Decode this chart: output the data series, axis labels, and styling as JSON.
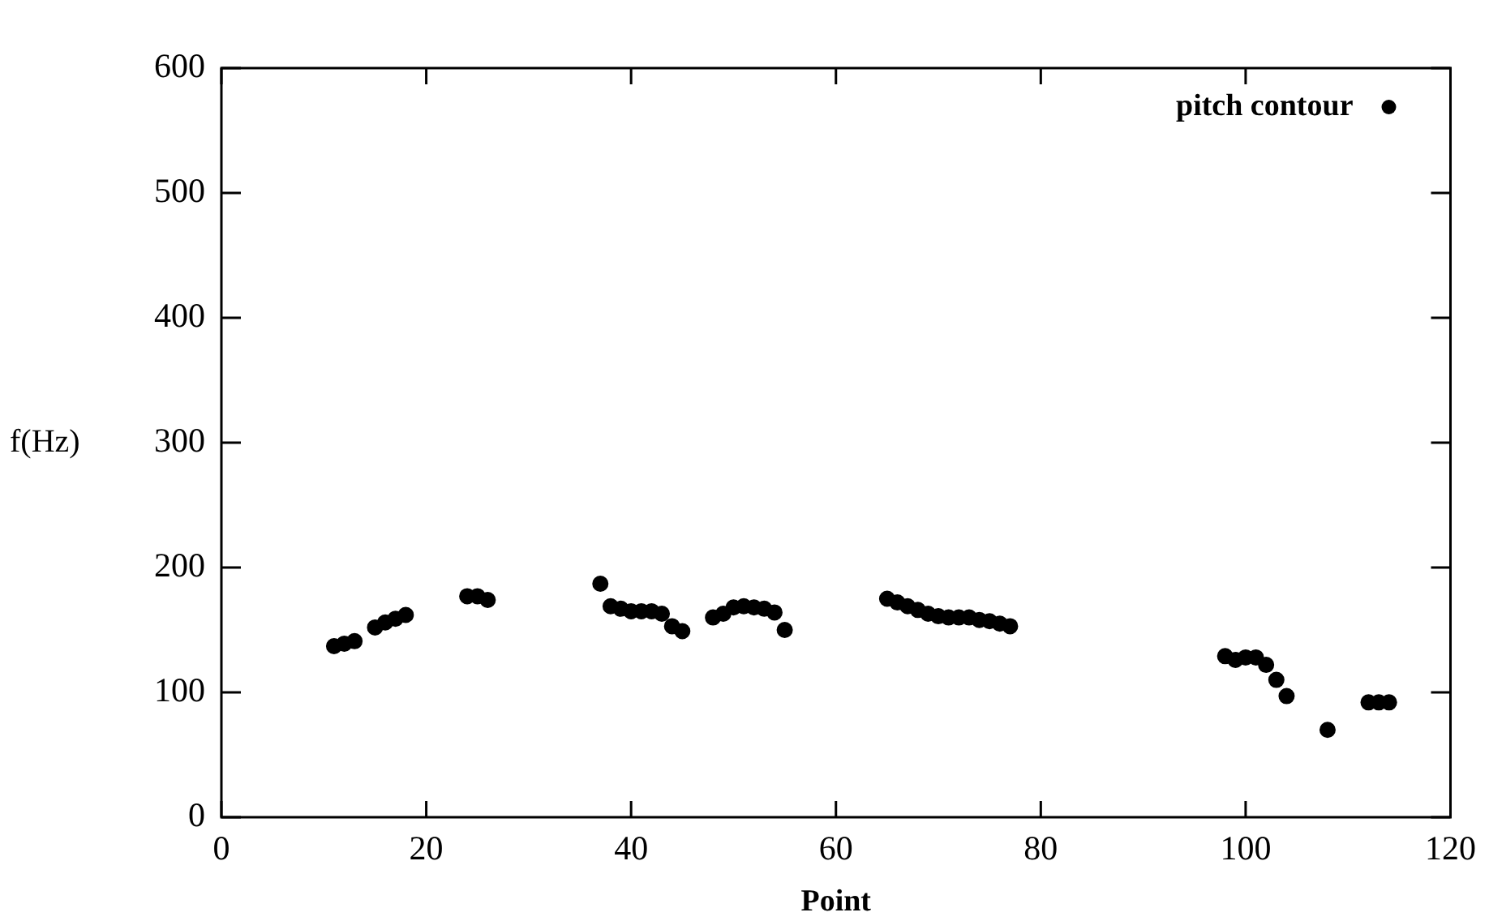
{
  "chart_data": {
    "type": "scatter",
    "xlabel": "Point",
    "ylabel": "f(Hz)",
    "xlim": [
      0,
      120
    ],
    "ylim": [
      0,
      600
    ],
    "xticks": [
      0,
      20,
      40,
      60,
      80,
      100,
      120
    ],
    "yticks": [
      0,
      100,
      200,
      300,
      400,
      500,
      600
    ],
    "grid": false,
    "legend": "top right",
    "marker": "circle",
    "series": [
      {
        "name": "pitch contour",
        "color": "#000000",
        "x": [
          11,
          12,
          13,
          15,
          16,
          17,
          18,
          24,
          25,
          26,
          37,
          38,
          39,
          40,
          41,
          42,
          43,
          44,
          45,
          48,
          49,
          50,
          51,
          52,
          53,
          54,
          55,
          65,
          66,
          67,
          68,
          69,
          70,
          71,
          72,
          73,
          74,
          75,
          76,
          77,
          98,
          99,
          100,
          101,
          102,
          103,
          104,
          108,
          112,
          113,
          114
        ],
        "values": [
          137,
          139,
          141,
          152,
          156,
          159,
          162,
          177,
          177,
          174,
          187,
          169,
          167,
          165,
          165,
          165,
          163,
          153,
          149,
          160,
          163,
          168,
          169,
          168,
          167,
          164,
          150,
          175,
          172,
          169,
          166,
          163,
          161,
          160,
          160,
          160,
          158,
          157,
          155,
          153,
          129,
          126,
          128,
          128,
          122,
          110,
          97,
          70,
          92,
          92,
          92
        ]
      }
    ]
  }
}
